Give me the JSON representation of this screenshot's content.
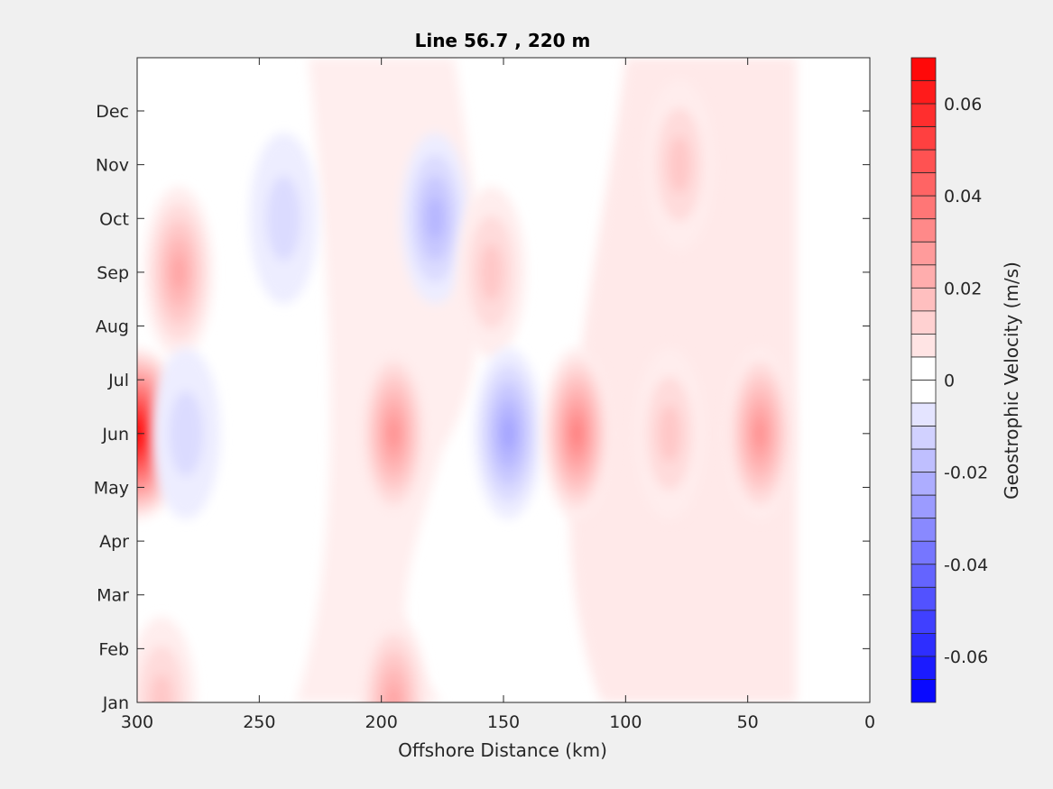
{
  "chart_data": {
    "type": "heatmap",
    "title": "Line 56.7 , 220 m",
    "xlabel": "Offshore Distance (km)",
    "ylabel": "",
    "xlim": [
      300,
      0
    ],
    "x_reversed": true,
    "x_ticks": [
      300,
      250,
      200,
      150,
      100,
      50,
      0
    ],
    "x_tick_labels": [
      "300",
      "250",
      "200",
      "150",
      "100",
      "50",
      "0"
    ],
    "y_ticks": [
      "Jan",
      "Feb",
      "Mar",
      "Apr",
      "May",
      "Jun",
      "Jul",
      "Aug",
      "Sep",
      "Oct",
      "Nov",
      "Dec"
    ],
    "colorbar": {
      "label": "Geostrophic Velocity (m/s)",
      "range": [
        -0.07,
        0.07
      ],
      "levels": 28,
      "ticks": [
        0.06,
        0.04,
        0.02,
        0,
        -0.02,
        -0.04,
        -0.06
      ],
      "tick_labels": [
        "0.06",
        "0.04",
        "0.02",
        "0",
        "-0.02",
        "-0.04",
        "-0.06"
      ],
      "positive_color": "#ff0000",
      "negative_color": "#0000ff",
      "zero_color": "#ffffff"
    },
    "features": [
      {
        "kind": "positive",
        "x_km": 300,
        "month": "Jun",
        "value": 0.07
      },
      {
        "kind": "positive",
        "x_km": 283,
        "month": "Sep",
        "value": 0.025
      },
      {
        "kind": "positive",
        "x_km": 290,
        "month": "Jan",
        "value": 0.015
      },
      {
        "kind": "negative",
        "x_km": 280,
        "month": "Jun",
        "value": -0.01
      },
      {
        "kind": "negative",
        "x_km": 240,
        "month": "Oct",
        "value": -0.012
      },
      {
        "kind": "negative",
        "x_km": 178,
        "month": "Oct",
        "value": -0.02
      },
      {
        "kind": "positive",
        "x_km": 195,
        "month": "Jun",
        "value": 0.03
      },
      {
        "kind": "positive",
        "x_km": 195,
        "month": "Jan",
        "value": 0.025
      },
      {
        "kind": "positive",
        "x_km": 155,
        "month": "Sep",
        "value": 0.015
      },
      {
        "kind": "negative",
        "x_km": 148,
        "month": "Jun",
        "value": -0.025
      },
      {
        "kind": "positive",
        "x_km": 120,
        "month": "Jun",
        "value": 0.035
      },
      {
        "kind": "positive",
        "x_km": 82,
        "month": "Jun",
        "value": 0.015
      },
      {
        "kind": "positive",
        "x_km": 78,
        "month": "Nov",
        "value": 0.015
      },
      {
        "kind": "positive",
        "x_km": 45,
        "month": "Jun",
        "value": 0.03
      }
    ]
  }
}
